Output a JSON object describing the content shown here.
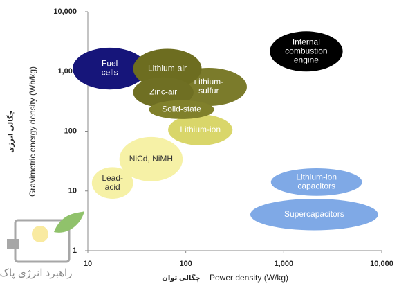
{
  "chart_data": {
    "type": "ragone",
    "x_label": "Power density (W/kg)",
    "x_label_fa": "چگالی توان",
    "y_label": "Gravimetric energy density (Wh/kg)",
    "y_label_fa": "چگالی انرژی",
    "logo_text": "راهبرد انرژی پاک",
    "x_log": true,
    "y_log": true,
    "xlim": [
      10,
      10000
    ],
    "xticks": [
      10,
      100,
      {
        "value": 1000,
        "label": "1,000"
      },
      {
        "value": 10000,
        "label": "10,000"
      }
    ],
    "ylim": [
      1,
      10000
    ],
    "yticks": [
      1,
      10,
      100,
      {
        "value": 1000,
        "label": "1,000"
      },
      {
        "value": 10000,
        "label": "10,000"
      }
    ],
    "regions": [
      {
        "name": [
          "Internal",
          "combustion",
          "engine"
        ],
        "color": "#000000",
        "text_color": "#ffffff",
        "x": [
          720,
          4000
        ],
        "y": [
          1000,
          4700
        ]
      },
      {
        "name": [
          "Supercapacitors"
        ],
        "color": "#7fa9e6",
        "text_color": "#ffffff",
        "x": [
          455,
          9200
        ],
        "y": [
          2.2,
          7.4
        ]
      },
      {
        "name": [
          "Lithium-ion",
          "capacitors"
        ],
        "color": "#7fa9e6",
        "text_color": "#ffffff",
        "x": [
          740,
          6300
        ],
        "y": [
          8.3,
          24
        ]
      },
      {
        "name": [
          "Lead-",
          "acid"
        ],
        "color": "#f6f1a6",
        "text_color": "#333333",
        "x": [
          11,
          29
        ],
        "y": [
          7.4,
          25
        ]
      },
      {
        "name": [
          "NiCd, NiMH"
        ],
        "color": "#f6f1a6",
        "text_color": "#333333",
        "x": [
          21,
          93
        ],
        "y": [
          14.5,
          80
        ]
      },
      {
        "name": [
          "Lithium-ion"
        ],
        "color": "#d9d66a",
        "text_color": "#ffffff",
        "x": [
          66,
          300
        ],
        "y": [
          58,
          190
        ]
      },
      {
        "name": [
          "Lithium-",
          "sulfur"
        ],
        "color": "#7b7b2b",
        "text_color": "#ffffff",
        "x": [
          70,
          420
        ],
        "y": [
          265,
          1150
        ]
      },
      {
        "name": [
          "Fuel",
          "cells"
        ],
        "color": "#16157a",
        "text_color": "#ffffff",
        "x": [
          7,
          40
        ],
        "y": [
          500,
          2500
        ]
      },
      {
        "name": [
          "Lithium-air"
        ],
        "color": "#6d6d20",
        "text_color": "#ffffff",
        "x": [
          29,
          145
        ],
        "y": [
          520,
          2400
        ]
      },
      {
        "name": [
          "Zinc-air"
        ],
        "color": "#6f6f23",
        "text_color": "#ffffff",
        "x": [
          29,
          120
        ],
        "y": [
          250,
          800
        ]
      },
      {
        "name": [
          "Solid-state"
        ],
        "color": "#80802b",
        "text_color": "#ffffff",
        "x": [
          42,
          195
        ],
        "y": [
          160,
          330
        ]
      }
    ]
  }
}
